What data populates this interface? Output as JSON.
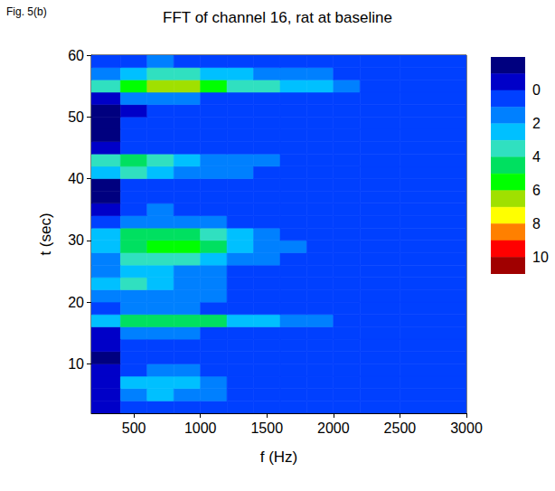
{
  "chart_data": {
    "type": "heatmap",
    "title": "FFT of channel 16, rat at baseline",
    "annotation": "Fig. 5(b)",
    "x_label": "f (Hz)",
    "y_label": "t (sec)",
    "xlim": [
      180,
      3000
    ],
    "xticks": [
      500,
      1000,
      1500,
      2000,
      2500,
      3000
    ],
    "ylim": [
      2,
      60
    ],
    "yticks": [
      10,
      20,
      30,
      40,
      50,
      60
    ],
    "cells": {
      "f_edges": [
        180,
        400,
        600,
        800,
        1000,
        1200,
        1400,
        1600,
        1800,
        2000,
        2200,
        2500,
        3000
      ],
      "t_edges": [
        2,
        4,
        6,
        8,
        10,
        12,
        14,
        16,
        18,
        20,
        22,
        24,
        26,
        28,
        30,
        32,
        34,
        36,
        38,
        40,
        42,
        44,
        46,
        48,
        50,
        52,
        54,
        56,
        58,
        60
      ],
      "values": [
        [
          -1,
          0.5,
          0.8,
          0.8,
          0.6,
          0.5,
          0.5,
          0.4,
          0.5,
          0.4,
          0.4,
          0.3
        ],
        [
          -0.5,
          1.5,
          2,
          1.8,
          1.2,
          0.8,
          0.6,
          0.5,
          0.5,
          0.4,
          0.4,
          0.3
        ],
        [
          -0.5,
          2,
          2.5,
          2.2,
          1.5,
          0.9,
          0.7,
          0.6,
          0.5,
          0.5,
          0.4,
          0.4
        ],
        [
          -1,
          0.8,
          1.2,
          1,
          0.8,
          0.6,
          0.5,
          0.5,
          0.4,
          0.4,
          0.4,
          0.3
        ],
        [
          -1.5,
          0.3,
          0.6,
          0.6,
          0.5,
          0.5,
          0.4,
          0.4,
          0.4,
          0.3,
          0.3,
          0.3
        ],
        [
          -1,
          0.5,
          0.7,
          0.6,
          0.5,
          0.5,
          0.5,
          0.4,
          0.4,
          0.4,
          0.3,
          0.3
        ],
        [
          -0.5,
          1,
          1.2,
          1,
          0.8,
          0.6,
          0.5,
          0.5,
          0.4,
          0.4,
          0.4,
          0.3
        ],
        [
          2.5,
          4,
          4.5,
          4.5,
          4,
          2.5,
          2,
          1.5,
          1.2,
          0.8,
          0.6,
          0.4
        ],
        [
          0,
          1,
          1.2,
          1,
          0.8,
          0.6,
          0.5,
          0.5,
          0.4,
          0.4,
          0.4,
          0.3
        ],
        [
          1,
          1.5,
          1.5,
          1.2,
          1,
          0.8,
          0.6,
          0.5,
          0.5,
          0.4,
          0.4,
          0.3
        ],
        [
          2.5,
          3,
          2.5,
          1.8,
          1.2,
          0.8,
          0.6,
          0.5,
          0.5,
          0.4,
          0.4,
          0.3
        ],
        [
          1,
          2,
          2.2,
          1.8,
          1.2,
          0.8,
          0.6,
          0.5,
          0.5,
          0.4,
          0.4,
          0.3
        ],
        [
          1.5,
          3,
          3.5,
          3.2,
          2.5,
          1.5,
          1,
          0.8,
          0.6,
          0.5,
          0.4,
          0.4
        ],
        [
          2,
          4.5,
          5,
          5.5,
          4,
          2.5,
          1.5,
          1,
          0.8,
          0.6,
          0.5,
          0.4
        ],
        [
          2,
          4.5,
          4.5,
          4.5,
          3.5,
          2,
          1.2,
          0.8,
          0.6,
          0.5,
          0.4,
          0.4
        ],
        [
          0.5,
          1.5,
          1.5,
          1.2,
          1,
          0.8,
          0.6,
          0.5,
          0.5,
          0.4,
          0.4,
          0.3
        ],
        [
          -1,
          0.8,
          1,
          0.8,
          0.6,
          0.5,
          0.5,
          0.4,
          0.4,
          0.4,
          0.3,
          0.3
        ],
        [
          -1.5,
          0,
          0.5,
          0.5,
          0.5,
          0.4,
          0.4,
          0.4,
          0.4,
          0.3,
          0.3,
          0.3
        ],
        [
          -1.5,
          0.2,
          0.5,
          0.5,
          0.5,
          0.4,
          0.4,
          0.4,
          0.4,
          0.3,
          0.3,
          0.3
        ],
        [
          2,
          3.5,
          2.5,
          1.8,
          1.2,
          1,
          0.8,
          0.6,
          0.5,
          0.5,
          0.4,
          0.3
        ],
        [
          3,
          4.5,
          3.5,
          2.5,
          1.8,
          1.2,
          1,
          0.8,
          0.6,
          0.5,
          0.4,
          0.3
        ],
        [
          -1,
          0.8,
          0.8,
          0.6,
          0.5,
          0.5,
          0.4,
          0.4,
          0.4,
          0.3,
          0.3,
          0.3
        ],
        [
          -1.5,
          0,
          0.5,
          0.5,
          0.5,
          0.4,
          0.4,
          0.4,
          0.4,
          0.3,
          0.3,
          0.3
        ],
        [
          -1.5,
          0,
          0.5,
          0.5,
          0.4,
          0.4,
          0.4,
          0.4,
          0.3,
          0.3,
          0.3,
          0.3
        ],
        [
          -1.5,
          -0.5,
          0.4,
          0.4,
          0.4,
          0.4,
          0.4,
          0.3,
          0.3,
          0.3,
          0.3,
          0.3
        ],
        [
          -1,
          1,
          1.2,
          1,
          0.8,
          0.6,
          0.5,
          0.5,
          0.4,
          0.4,
          0.3,
          0.3
        ],
        [
          3.5,
          5,
          6,
          6.5,
          5,
          3.5,
          3,
          2.5,
          2,
          1.2,
          0.6,
          0.4
        ],
        [
          1.5,
          2.5,
          3,
          3,
          2.5,
          2,
          1.8,
          1.5,
          1.2,
          0.8,
          0.5,
          0.4
        ],
        [
          0,
          0.8,
          1,
          0.8,
          0.6,
          0.5,
          0.5,
          0.4,
          0.4,
          0.4,
          0.3,
          0.3
        ]
      ]
    },
    "colorbar": {
      "range": [
        -2,
        11
      ],
      "ticks": [
        0,
        2,
        4,
        6,
        8,
        10
      ],
      "colors": [
        "#00007f",
        "#0000c8",
        "#0040ff",
        "#0080ff",
        "#00c0ff",
        "#30e0c0",
        "#00e060",
        "#00ff00",
        "#a0e000",
        "#ffff00",
        "#ff8000",
        "#ff0000",
        "#a00000"
      ]
    }
  }
}
